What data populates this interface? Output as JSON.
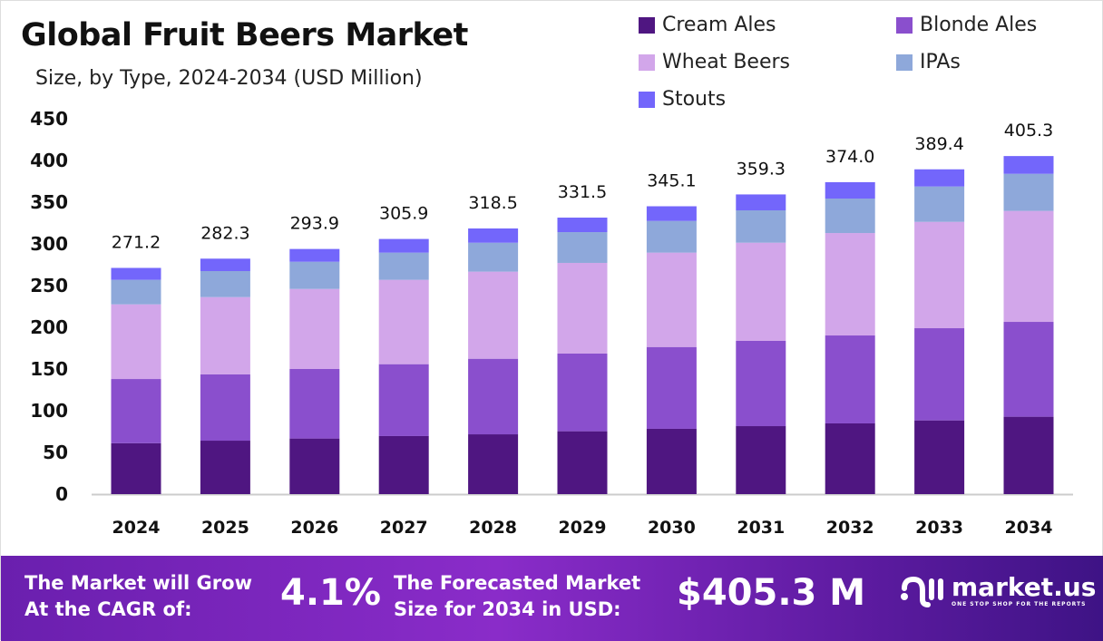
{
  "chart_data": {
    "type": "stacked-bar",
    "title": "Global Fruit Beers Market",
    "subtitle": "Size, by Type, 2024-2034 (USD Million)",
    "categories": [
      "2024",
      "2025",
      "2026",
      "2027",
      "2028",
      "2029",
      "2030",
      "2031",
      "2032",
      "2033",
      "2034"
    ],
    "ylim": [
      0,
      450
    ],
    "yticks": [
      0,
      50,
      100,
      150,
      200,
      250,
      300,
      350,
      400,
      450
    ],
    "grid": false,
    "legend_position": "top-right",
    "totals": [
      "271.2",
      "282.3",
      "293.9",
      "305.9",
      "318.5",
      "331.5",
      "345.1",
      "359.3",
      "374.0",
      "389.4",
      "405.3"
    ],
    "series": [
      {
        "name": "Cream Ales",
        "color": "#4f1681",
        "values": [
          61.0,
          64.1,
          66.7,
          69.6,
          71.7,
          75.4,
          78.3,
          81.5,
          84.8,
          88.4,
          92.8
        ]
      },
      {
        "name": "Blonde Ales",
        "color": "#8a4fcd",
        "values": [
          77.0,
          79.4,
          83.3,
          86.2,
          90.6,
          93.1,
          98.1,
          102.2,
          105.4,
          110.5,
          113.7
        ]
      },
      {
        "name": "Wheat Beers",
        "color": "#d2a6ea",
        "values": [
          89.5,
          92.7,
          96.0,
          101.1,
          104.4,
          108.7,
          113.1,
          117.7,
          122.8,
          127.5,
          133.0
        ]
      },
      {
        "name": "IPAs",
        "color": "#8ea8da",
        "values": [
          29.4,
          31.2,
          32.6,
          32.6,
          34.7,
          36.9,
          38.0,
          38.8,
          41.3,
          42.4,
          44.5
        ]
      },
      {
        "name": "Stouts",
        "color": "#7366fb",
        "values": [
          14.3,
          14.9,
          15.3,
          16.4,
          17.1,
          17.4,
          17.6,
          19.1,
          19.7,
          20.6,
          21.3
        ]
      }
    ]
  },
  "footer": {
    "cagr_label_1": "The Market will Grow",
    "cagr_label_2": "At the CAGR of:",
    "cagr_value": "4.1%",
    "forecast_label_1": "The Forecasted Market",
    "forecast_label_2": "Size for 2034 in USD:",
    "forecast_value": "$405.3 M",
    "logo_text": "market.us",
    "logo_tagline": "ONE STOP SHOP FOR THE REPORTS"
  }
}
